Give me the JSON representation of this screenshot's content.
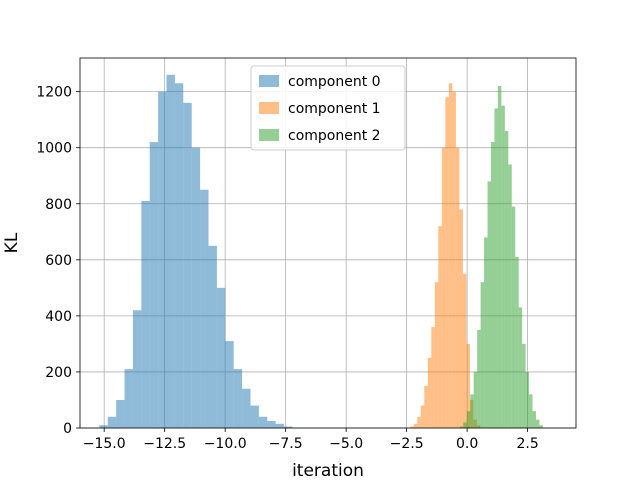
{
  "chart_data": {
    "type": "histogram",
    "xlabel": "iteration",
    "ylabel": "KL",
    "xlim": [
      -16.0,
      4.5
    ],
    "ylim": [
      0,
      1320
    ],
    "xticks": [
      -15.0,
      -12.5,
      -10.0,
      -7.5,
      -5.0,
      -2.5,
      0.0,
      2.5
    ],
    "xtick_labels": [
      "−15.0",
      "−12.5",
      "−10.0",
      "−7.5",
      "−5.0",
      "−2.5",
      "0.0",
      "2.5"
    ],
    "yticks": [
      0,
      200,
      400,
      600,
      800,
      1000,
      1200
    ],
    "ytick_labels": [
      "0",
      "200",
      "400",
      "600",
      "800",
      "1000",
      "1200"
    ],
    "grid": true,
    "legend_position": "top-center",
    "series": [
      {
        "name": "component 0",
        "color": "#1f77b4",
        "alpha": 0.5,
        "bin_start": -15.2,
        "bin_width": 0.347,
        "counts": [
          10,
          40,
          100,
          210,
          420,
          810,
          1020,
          1200,
          1260,
          1230,
          1160,
          1000,
          850,
          650,
          500,
          310,
          210,
          140,
          80,
          40,
          25,
          15,
          5
        ]
      },
      {
        "name": "component 1",
        "color": "#ff7f0e",
        "alpha": 0.5,
        "bin_start": -2.35,
        "bin_width": 0.145,
        "counts": [
          5,
          15,
          40,
          80,
          150,
          250,
          360,
          520,
          720,
          1000,
          1180,
          1230,
          1200,
          1000,
          780,
          550,
          300,
          100,
          30,
          10
        ]
      },
      {
        "name": "component 2",
        "color": "#2ca02c",
        "alpha": 0.5,
        "bin_start": -0.3,
        "bin_width": 0.143,
        "counts": [
          5,
          20,
          60,
          120,
          200,
          350,
          520,
          680,
          880,
          1020,
          1140,
          1220,
          1150,
          1060,
          940,
          790,
          610,
          430,
          300,
          200,
          120,
          60,
          30,
          10
        ]
      }
    ]
  }
}
